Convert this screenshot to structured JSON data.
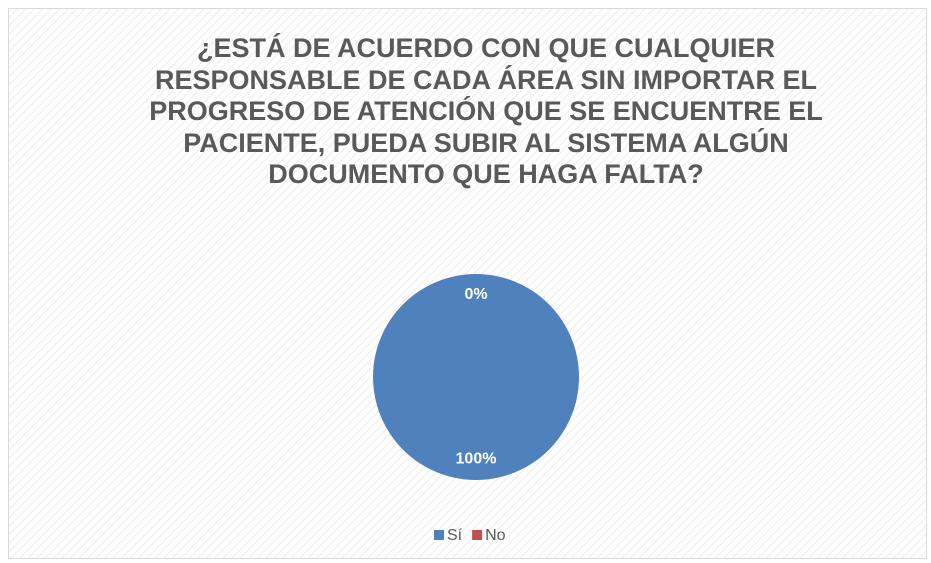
{
  "chart_data": {
    "type": "pie",
    "title": "¿ESTÁ DE ACUERDO CON QUE CUALQUIER RESPONSABLE DE CADA ÁREA SIN IMPORTAR EL PROGRESO DE ATENCIÓN QUE SE ENCUENTRE EL PACIENTE, PUEDA SUBIR AL SISTEMA ALGÚN DOCUMENTO QUE HAGA FALTA?",
    "categories": [
      "Sí",
      "No"
    ],
    "values": [
      100,
      0
    ],
    "value_labels": [
      "100%",
      "0%"
    ],
    "colors": [
      "#4f81bd",
      "#c0504d"
    ],
    "legend": "bottom"
  }
}
